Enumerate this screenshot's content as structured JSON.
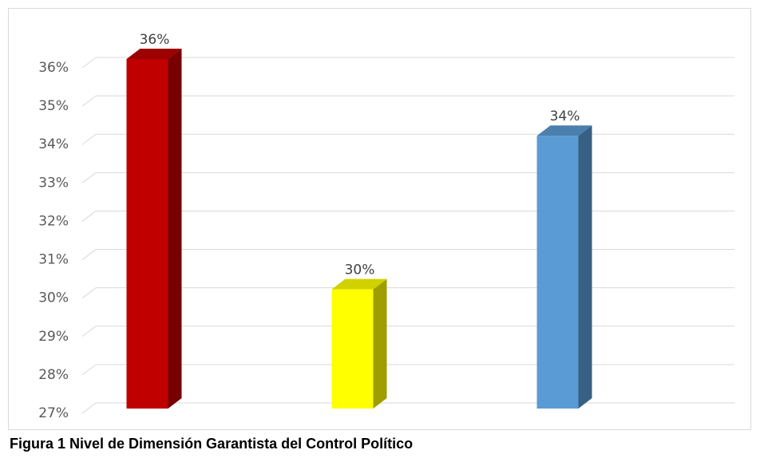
{
  "chart_data": {
    "type": "bar3d",
    "title": "Figura 1 Nivel de Dimensión Garantista del Control Político",
    "categories": [
      null,
      null,
      null
    ],
    "values": [
      36,
      30,
      34
    ],
    "value_labels": [
      "36%",
      "30%",
      "34%"
    ],
    "colors": [
      "#c00000",
      "#ffff00",
      "#5b9bd5"
    ],
    "ylim": [
      27,
      36
    ],
    "yticks": [
      {
        "value": 27,
        "label": "27%"
      },
      {
        "value": 28,
        "label": "28%"
      },
      {
        "value": 29,
        "label": "29%"
      },
      {
        "value": 30,
        "label": "30%"
      },
      {
        "value": 31,
        "label": "31%"
      },
      {
        "value": 32,
        "label": "32%"
      },
      {
        "value": 33,
        "label": "33%"
      },
      {
        "value": 34,
        "label": "34%"
      },
      {
        "value": 35,
        "label": "35%"
      },
      {
        "value": 36,
        "label": "36%"
      }
    ],
    "grid": true
  }
}
